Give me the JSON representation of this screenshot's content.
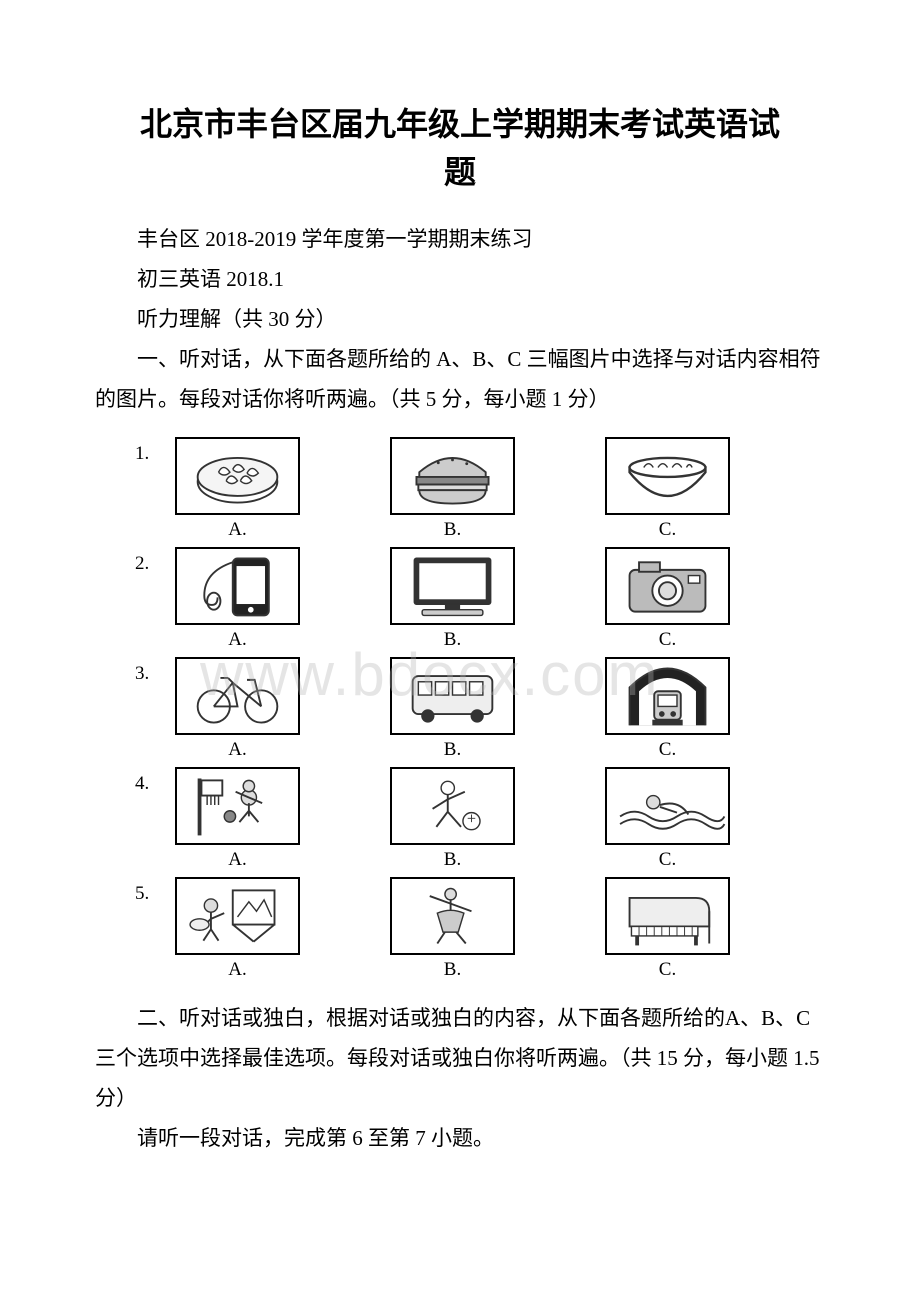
{
  "title_line1": "北京市丰台区届九年级上学期期末考试英语试",
  "title_line2": "题",
  "line_subtitle": "丰台区 2018-2019 学年度第一学期期末练习",
  "line_subject": "初三英语    2018.1",
  "line_listening": "听力理解（共 30 分）",
  "section1": "一、听对话，从下面各题所给的 A、B、C 三幅图片中选择与对话内容相符的图片。每段对话你将听两遍。（共 5 分，每小题 1 分）",
  "section2": "二、听对话或独白，根据对话或独白的内容，从下面各题所给的A、B、C 三个选项中选择最佳选项。每段对话或独白你将听两遍。（共 15 分，每小题 1.5 分）",
  "section2_sub": "请听一段对话，完成第 6 至第 7 小题。",
  "watermark": "www.bdocx.com",
  "colors": {
    "text": "#000000",
    "bg": "#ffffff",
    "border": "#000000",
    "watermark": "rgba(180,180,180,0.35)"
  },
  "questions": [
    {
      "num": "1.",
      "options": [
        {
          "label": "A.",
          "icon": "dumplings"
        },
        {
          "label": "B.",
          "icon": "hamburger"
        },
        {
          "label": "C.",
          "icon": "noodles"
        }
      ]
    },
    {
      "num": "2.",
      "options": [
        {
          "label": "A.",
          "icon": "phone"
        },
        {
          "label": "B.",
          "icon": "computer"
        },
        {
          "label": "C.",
          "icon": "camera"
        }
      ]
    },
    {
      "num": "3.",
      "options": [
        {
          "label": "A.",
          "icon": "bicycle"
        },
        {
          "label": "B.",
          "icon": "bus"
        },
        {
          "label": "C.",
          "icon": "subway"
        }
      ]
    },
    {
      "num": "4.",
      "options": [
        {
          "label": "A.",
          "icon": "basketball"
        },
        {
          "label": "B.",
          "icon": "football"
        },
        {
          "label": "C.",
          "icon": "swimming"
        }
      ]
    },
    {
      "num": "5.",
      "options": [
        {
          "label": "A.",
          "icon": "painting"
        },
        {
          "label": "B.",
          "icon": "dancing"
        },
        {
          "label": "C.",
          "icon": "piano"
        }
      ]
    }
  ],
  "icon_stroke": "#333333",
  "icon_fill_light": "#eeeeee",
  "icon_fill_mid": "#bbbbbb",
  "icon_fill_dark": "#555555"
}
